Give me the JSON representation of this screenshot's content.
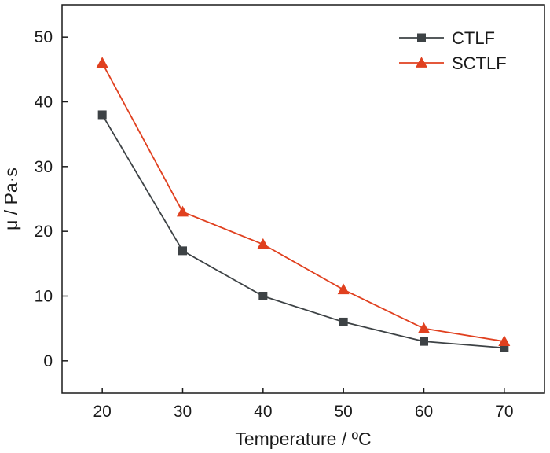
{
  "chart_data": {
    "type": "line",
    "x": [
      20,
      30,
      40,
      50,
      60,
      70
    ],
    "series": [
      {
        "name": "CTLF",
        "values": [
          38,
          17,
          10,
          6,
          3,
          2
        ],
        "color": "#3d4245",
        "marker": "square"
      },
      {
        "name": "SCTLF",
        "values": [
          46,
          23,
          18,
          11,
          5,
          3
        ],
        "color": "#e0401f",
        "marker": "triangle"
      }
    ],
    "xlabel": "Temperature / ºC",
    "ylabel": "μ / Pa·s",
    "xlim": [
      15,
      75
    ],
    "ylim": [
      -5,
      55
    ],
    "xticks": [
      "20",
      "30",
      "40",
      "50",
      "60",
      "70"
    ],
    "yticks": [
      "0",
      "10",
      "20",
      "30",
      "40",
      "50"
    ],
    "legend_position": "top-right",
    "grid": false
  }
}
